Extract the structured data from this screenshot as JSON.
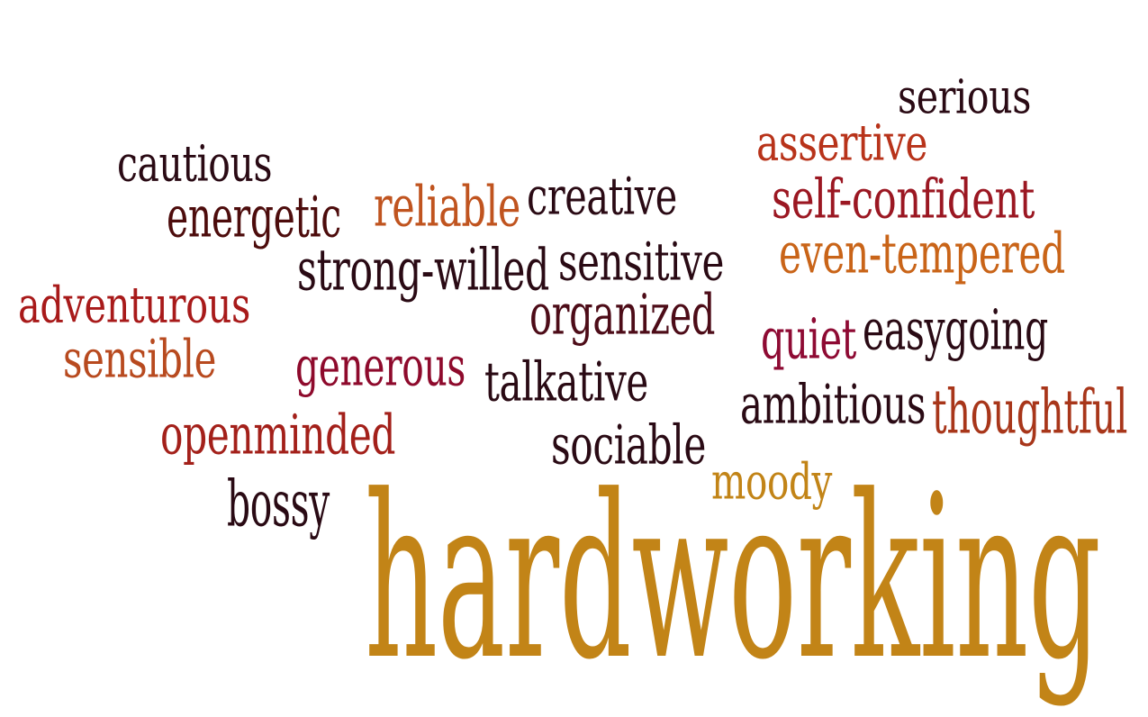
{
  "words": [
    {
      "text": "serious",
      "color": "#2a0a14"
    },
    {
      "text": "assertive",
      "color": "#b8331a"
    },
    {
      "text": "cautious",
      "color": "#2a0a14"
    },
    {
      "text": "reliable",
      "color": "#c0541f"
    },
    {
      "text": "creative",
      "color": "#2a0a14"
    },
    {
      "text": "self-confident",
      "color": "#9b1722"
    },
    {
      "text": "energetic",
      "color": "#4d0c0c"
    },
    {
      "text": "even-tempered",
      "color": "#c96418"
    },
    {
      "text": "strong-willed",
      "color": "#2a0a14"
    },
    {
      "text": "sensitive",
      "color": "#2a0a14"
    },
    {
      "text": "adventurous",
      "color": "#a81a1a"
    },
    {
      "text": "organized",
      "color": "#4d0c18"
    },
    {
      "text": "easygoing",
      "color": "#2a0a14"
    },
    {
      "text": "quiet",
      "color": "#8e0a33"
    },
    {
      "text": "sensible",
      "color": "#b84a1f"
    },
    {
      "text": "generous",
      "color": "#8e0a2c"
    },
    {
      "text": "talkative",
      "color": "#2a0a14"
    },
    {
      "text": "ambitious",
      "color": "#2a0a14"
    },
    {
      "text": "thoughtful",
      "color": "#a8361a"
    },
    {
      "text": "openminded",
      "color": "#a3201a"
    },
    {
      "text": "sociable",
      "color": "#2a0a14"
    },
    {
      "text": "moody",
      "color": "#c28417"
    },
    {
      "text": "bossy",
      "color": "#2a0a14"
    },
    {
      "text": "hardworking",
      "color": "#c28417"
    }
  ]
}
